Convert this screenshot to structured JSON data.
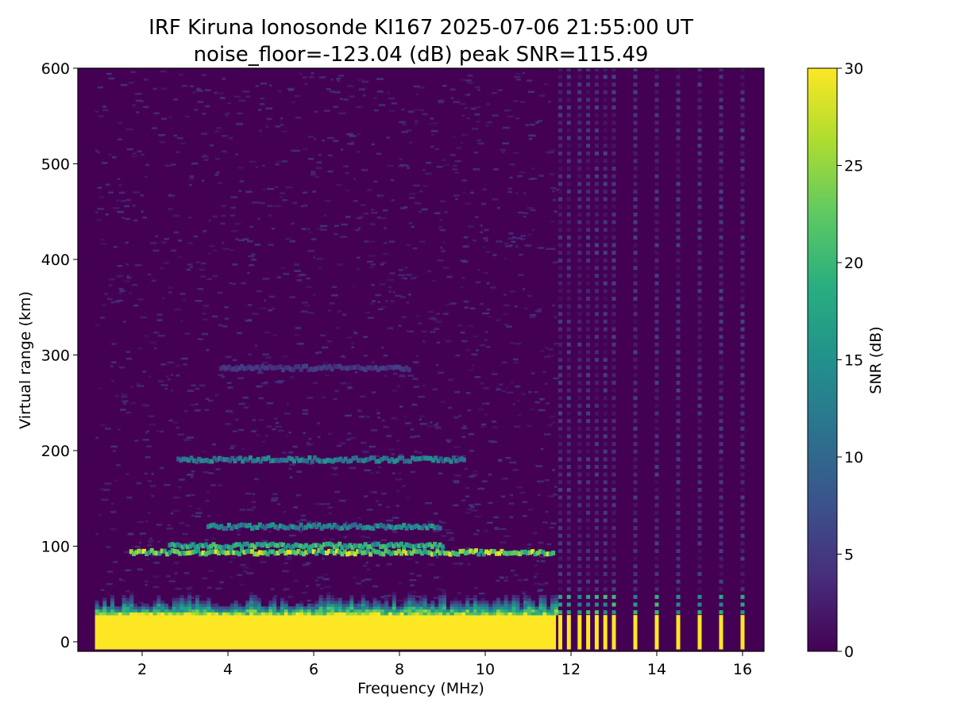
{
  "chart_data": {
    "type": "heatmap",
    "title": "IRF Kiruna Ionosonde KI167 2025-07-06 21:55:00  UT",
    "subtitle": "noise_floor=-123.04 (dB) peak SNR=115.49",
    "xlabel": "Frequency (MHz)",
    "ylabel": "Virtual range (km)",
    "xlim": [
      0.5,
      16.5
    ],
    "ylim": [
      -10,
      600
    ],
    "x_ticks": [
      2,
      4,
      6,
      8,
      10,
      12,
      14,
      16
    ],
    "y_ticks": [
      0,
      100,
      200,
      300,
      400,
      500,
      600
    ],
    "colorbar": {
      "label": "SNR (dB)",
      "range": [
        0,
        30
      ],
      "ticks": [
        0,
        5,
        10,
        15,
        20,
        25,
        30
      ],
      "colormap": "viridis"
    },
    "colors": {
      "background_low": "#440154",
      "saturated": "#fde725",
      "mid": "#21918c"
    },
    "frequency_coverage_mhz": [
      0.9,
      16.0
    ],
    "echo_traces": [
      {
        "range_km": 93,
        "freq_mhz": [
          1.7,
          11.6
        ],
        "snr_db": 28
      },
      {
        "range_km": 100,
        "freq_mhz": [
          2.6,
          9.0
        ],
        "snr_db": 22
      },
      {
        "range_km": 120,
        "freq_mhz": [
          3.5,
          8.9
        ],
        "snr_db": 16
      },
      {
        "range_km": 190,
        "freq_mhz": [
          2.8,
          9.5
        ],
        "snr_db": 15
      },
      {
        "range_km": 286,
        "freq_mhz": [
          3.8,
          8.2
        ],
        "snr_db": 6
      }
    ],
    "low_range_saturation_km": [
      0,
      28
    ],
    "discrete_channels_mhz": [
      11.75,
      11.95,
      12.2,
      12.4,
      12.6,
      12.8,
      13.0,
      13.5,
      14.0,
      14.5,
      15.0,
      15.5,
      16.0
    ]
  }
}
